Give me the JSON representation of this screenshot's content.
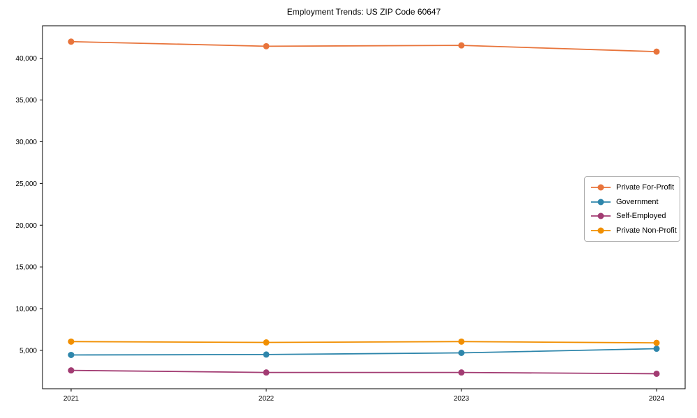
{
  "chart_data": {
    "type": "line",
    "title": "Employment Trends: US ZIP Code 60647",
    "xlabel": "",
    "ylabel": "",
    "x_categories": [
      "2021",
      "2022",
      "2023",
      "2024"
    ],
    "series": [
      {
        "name": "Private For-Profit",
        "color": "#E8743B",
        "values": [
          42000,
          41450,
          41550,
          40800
        ]
      },
      {
        "name": "Government",
        "color": "#2E86AB",
        "values": [
          4450,
          4500,
          4700,
          5200
        ]
      },
      {
        "name": "Self-Employed",
        "color": "#A23B72",
        "values": [
          2600,
          2350,
          2350,
          2200
        ]
      },
      {
        "name": "Private Non-Profit",
        "color": "#F18F01",
        "values": [
          6050,
          5950,
          6050,
          5900
        ]
      }
    ],
    "ylim": [
      400,
      43900
    ],
    "yticks": [
      5000,
      10000,
      15000,
      20000,
      25000,
      30000,
      35000,
      40000
    ],
    "ytick_labels": [
      "5,000",
      "10,000",
      "15,000",
      "20,000",
      "25,000",
      "30,000",
      "35,000",
      "40,000"
    ],
    "grid": false,
    "legend_position": "center-right",
    "marker": "circle",
    "axis_color": "#000000",
    "background_color": "#ffffff"
  }
}
